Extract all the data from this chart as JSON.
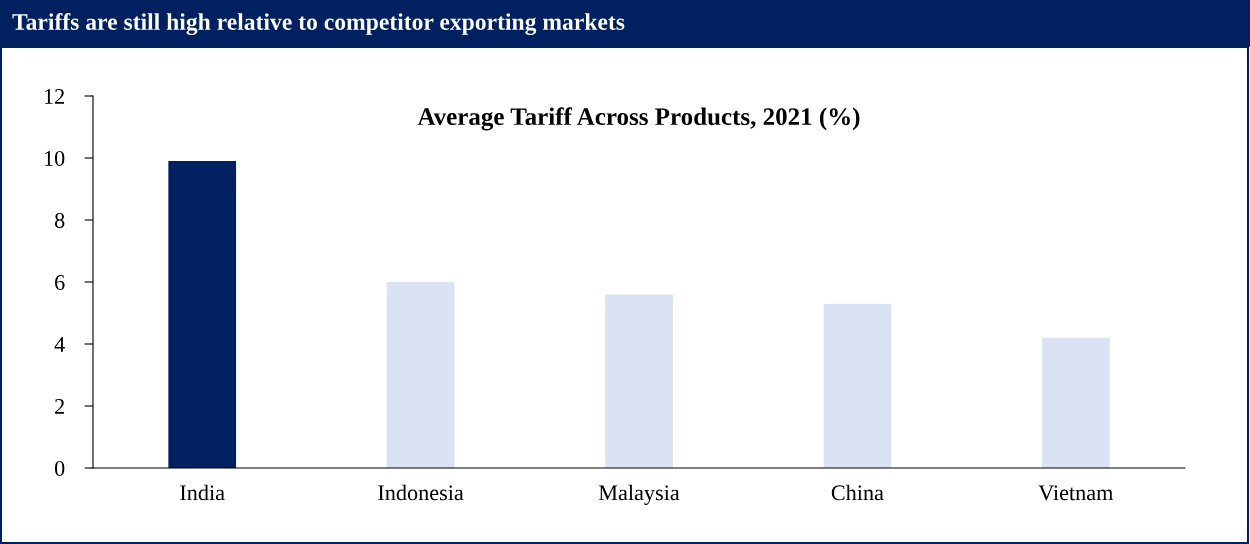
{
  "chart_data": {
    "type": "bar",
    "title": "Tariffs are still high relative to competitor exporting markets",
    "subtitle": "Average Tariff Across Products, 2021 (%)",
    "categories": [
      "India",
      "Indonesia",
      "Malaysia",
      "China",
      "Vietnam"
    ],
    "values": [
      9.9,
      6.0,
      5.6,
      5.3,
      4.2
    ],
    "colors": [
      "#002060",
      "#dae3f3",
      "#dae3f3",
      "#dae3f3",
      "#dae3f3"
    ],
    "ylim": [
      0,
      12
    ],
    "yticks": [
      0,
      2,
      4,
      6,
      8,
      10,
      12
    ],
    "grid": false,
    "legend": false
  }
}
